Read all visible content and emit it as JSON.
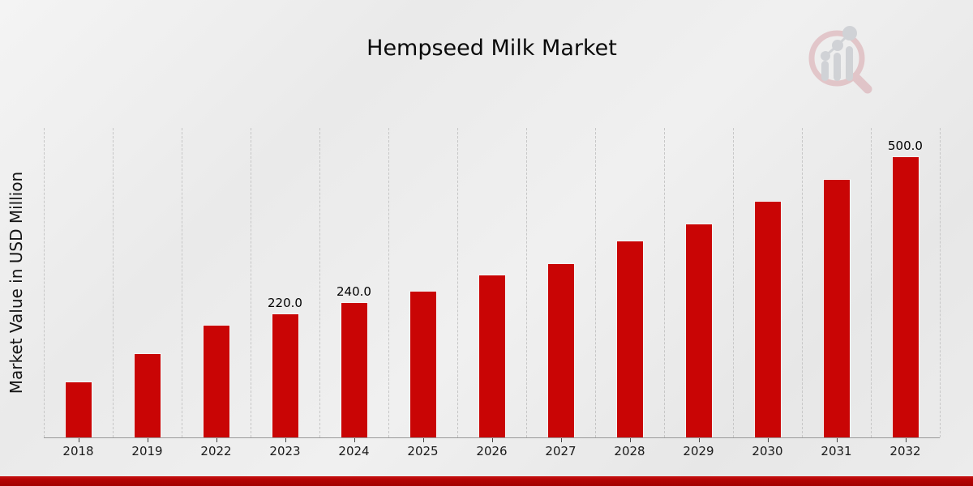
{
  "header": {
    "title": "Hempseed Milk Market",
    "watermark_icon": "magnifier-bar-chart-logo"
  },
  "chart_data": {
    "type": "bar",
    "title": "Hempseed Milk Market",
    "xlabel": "",
    "ylabel": "Market Value in USD Million",
    "categories": [
      "2018",
      "2019",
      "2022",
      "2023",
      "2024",
      "2025",
      "2026",
      "2027",
      "2028",
      "2029",
      "2030",
      "2031",
      "2032"
    ],
    "values": [
      100,
      150,
      200,
      220,
      240,
      260,
      290,
      310,
      350,
      380,
      420,
      460,
      500
    ],
    "data_labels": {
      "2023": "220.0",
      "2024": "240.0",
      "2032": "500.0"
    },
    "ylim": [
      0,
      550
    ],
    "grid": "vertical-dashed",
    "legend": "none",
    "bar_color": "#C90505"
  },
  "colors": {
    "bar": "#C90505",
    "bottom_band": "#B30505",
    "background": "#EBEBEB",
    "gridline": "#C6C6C6",
    "axis_line": "#9A9A9A",
    "text": "#1A1A1A"
  }
}
